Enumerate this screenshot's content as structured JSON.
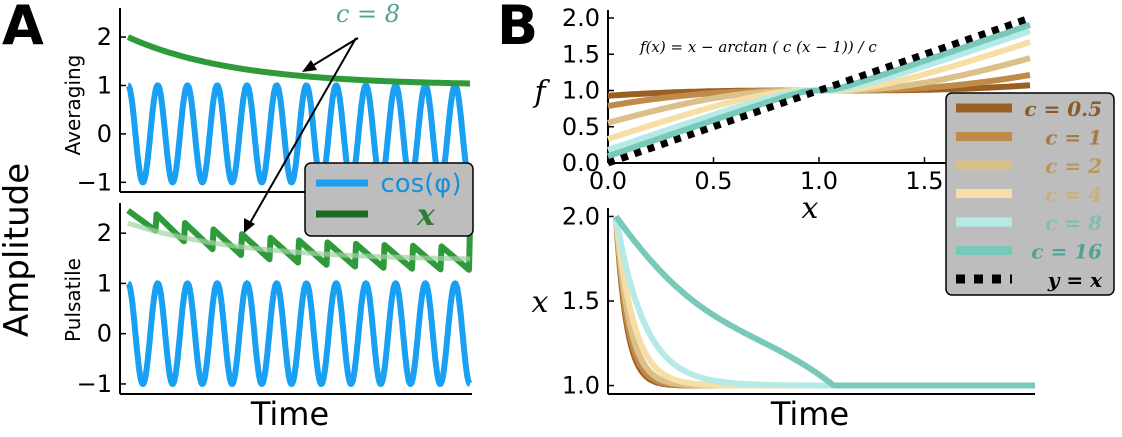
{
  "panel_labels": {
    "a": "A",
    "b": "B"
  },
  "chart_data": [
    {
      "type": "line",
      "panel": "A",
      "ylabel": "Amplitude",
      "xlabel": "Time",
      "annotation": "c = 8",
      "subplots": [
        {
          "name": "Averaging",
          "ylim": [
            -1.2,
            2.6
          ],
          "yticks": [
            {
              "v": -1,
              "t": "−1"
            },
            {
              "v": 0,
              "t": "0"
            },
            {
              "v": 1,
              "t": "1"
            },
            {
              "v": 2,
              "t": "2"
            }
          ],
          "osc_cycles": 11.5,
          "series": [
            {
              "name": "cos(φ)",
              "color": "#1aa0f2",
              "kind": "cosine",
              "amplitude": 1
            },
            {
              "name": "x",
              "color": "#2e9a3a",
              "kind": "decay",
              "start": 2.0,
              "end": 1.0,
              "rate": 3.2
            }
          ]
        },
        {
          "name": "Pulsatile",
          "ylim": [
            -1.2,
            2.6
          ],
          "yticks": [
            {
              "v": -1,
              "t": "−1"
            },
            {
              "v": 0,
              "t": "0"
            },
            {
              "v": 1,
              "t": "1"
            },
            {
              "v": 2,
              "t": "2"
            }
          ],
          "osc_cycles": 11.5,
          "series": [
            {
              "name": "cos(φ)",
              "color": "#1aa0f2",
              "kind": "cosine",
              "amplitude": 1
            },
            {
              "name": "x (pulsatile)",
              "color": "#2e9a3a",
              "kind": "sawtooth",
              "start": 2.45,
              "pulses": 12,
              "drop": 0.45
            },
            {
              "name": "x (average)",
              "color": "#9fd1a3",
              "kind": "decay",
              "start": 2.2,
              "end": 1.45,
              "rate": 3.0
            }
          ]
        }
      ],
      "legend": [
        {
          "label": "cos(φ)",
          "color": "#1aa0f2"
        },
        {
          "label": "x",
          "color": "#2e7d32"
        }
      ]
    },
    {
      "type": "line",
      "panel": "B-top",
      "equation": "f(x) = x − arctan ( c (x − 1)) / c",
      "xlabel": "x",
      "ylabel": "f",
      "xlim": [
        0,
        2
      ],
      "ylim": [
        0,
        2
      ],
      "xticks": [
        "0.0",
        "0.5",
        "1.0",
        "1.5"
      ],
      "yticks": [
        "0.0",
        "0.5",
        "1.0",
        "1.5",
        "2.0"
      ],
      "series": [
        {
          "name": "c = 0.5",
          "c": 0.5,
          "color": "#9b5f22"
        },
        {
          "name": "c = 1",
          "c": 1,
          "color": "#c08a48"
        },
        {
          "name": "c = 2",
          "c": 2,
          "color": "#dcc08a"
        },
        {
          "name": "c = 4",
          "c": 4,
          "color": "#f5dfa6"
        },
        {
          "name": "c = 8",
          "c": 8,
          "color": "#b5eae6"
        },
        {
          "name": "c = 16",
          "c": 16,
          "color": "#79c9bb"
        },
        {
          "name": "y = x",
          "c": null,
          "color": "#000000",
          "style": "dotted"
        }
      ]
    },
    {
      "type": "line",
      "panel": "B-bottom",
      "xlabel": "Time",
      "ylabel": "x",
      "ylim": [
        0.95,
        2.05
      ],
      "yticks": [
        "1.0",
        "1.5",
        "2.0"
      ],
      "series": [
        {
          "name": "c = 0.5",
          "color": "#9b5f22",
          "settle": 0.1
        },
        {
          "name": "c = 1",
          "color": "#c08a48",
          "settle": 0.11
        },
        {
          "name": "c = 2",
          "color": "#dcc08a",
          "settle": 0.13
        },
        {
          "name": "c = 4",
          "color": "#f5dfa6",
          "settle": 0.17
        },
        {
          "name": "c = 8",
          "color": "#b5eae6",
          "settle": 0.27
        },
        {
          "name": "c = 16",
          "color": "#79c9bb",
          "settle": 0.52
        }
      ]
    }
  ],
  "legend_b": [
    {
      "label": "c = 0.5",
      "color": "#9b5f22",
      "text_color": "#8a5a2b",
      "style": "solid"
    },
    {
      "label": "c = 1",
      "color": "#c08a48",
      "text_color": "#a87a40",
      "style": "solid"
    },
    {
      "label": "c = 2",
      "color": "#dcc08a",
      "text_color": "#b89858",
      "style": "solid"
    },
    {
      "label": "c = 4",
      "color": "#f5dfa6",
      "text_color": "#c9b07a",
      "style": "solid"
    },
    {
      "label": "c = 8",
      "color": "#b5eae6",
      "text_color": "#7fbdb5",
      "style": "solid"
    },
    {
      "label": "c = 16",
      "color": "#79c9bb",
      "text_color": "#4fa396",
      "style": "solid"
    },
    {
      "label": "y = x",
      "color": "#000000",
      "text_color": "#000000",
      "style": "dotted"
    }
  ]
}
